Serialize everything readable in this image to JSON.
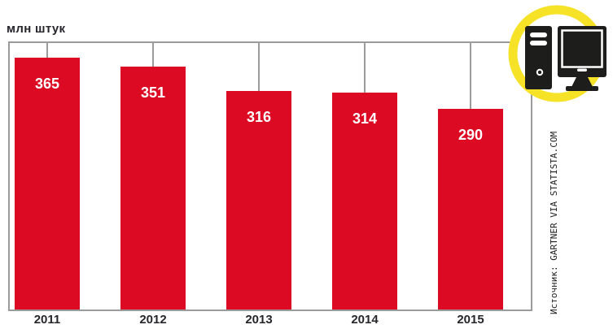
{
  "header": {
    "unit_label": "млн штук"
  },
  "source": {
    "label": "Источник: GARTNER VIA STATISTA.COM"
  },
  "icons": {
    "badge": "desktop-computer-icon"
  },
  "colors": {
    "bar": "#dc0a22",
    "line_gray": "#9b9b9b",
    "text_dark": "#26262c",
    "accent_yellow": "#f6e227",
    "value_text": "#ffffff"
  },
  "chart_data": {
    "type": "bar",
    "categories": [
      "2011",
      "2012",
      "2013",
      "2014",
      "2015"
    ],
    "values": [
      365,
      351,
      316,
      314,
      290
    ],
    "title": "",
    "xlabel": "",
    "ylabel": "млн штук",
    "ylim": [
      0,
      388
    ],
    "grid": false,
    "legend_position": "none",
    "value_labels_inside_bars": true,
    "connector_lines_from_top_frame": true
  }
}
